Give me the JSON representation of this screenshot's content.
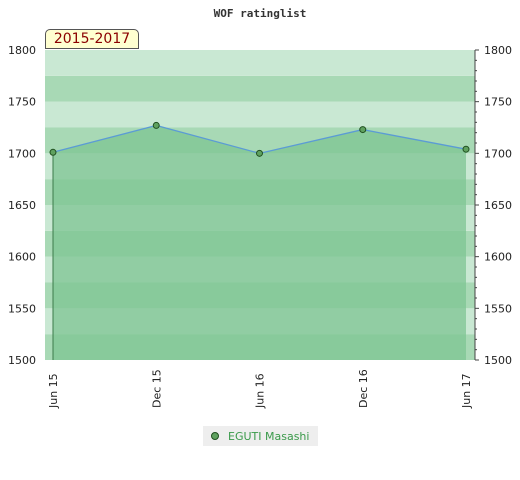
{
  "chart_data": {
    "type": "area",
    "title": "WOF ratinglist",
    "period_label": "2015-2017",
    "x": [
      "Jun 15",
      "Dec 15",
      "Jun 16",
      "Dec 16",
      "Jun 17"
    ],
    "series": [
      {
        "name": "EGUTI Masashi",
        "values": [
          1701,
          1727,
          1700,
          1723,
          1704
        ]
      }
    ],
    "ylim": [
      1500,
      1800
    ],
    "yticks": [
      1500,
      1550,
      1600,
      1650,
      1700,
      1750,
      1800
    ],
    "y_axis_both_sides": true,
    "grid": "horizontal bands",
    "legend_position": "bottom-center",
    "colors": {
      "line": "#5b9bd5",
      "area_fill": "#7ec493",
      "marker_fill": "#5fa15f",
      "marker_stroke": "#1f4f1f",
      "band_light": "#c9e8d3",
      "band_mid": "#a8d9b5",
      "band_dark": "#8ccca0",
      "legend_text": "#3a9a4a",
      "period_text": "#8b0000",
      "period_bg": "#ffffd0"
    }
  }
}
